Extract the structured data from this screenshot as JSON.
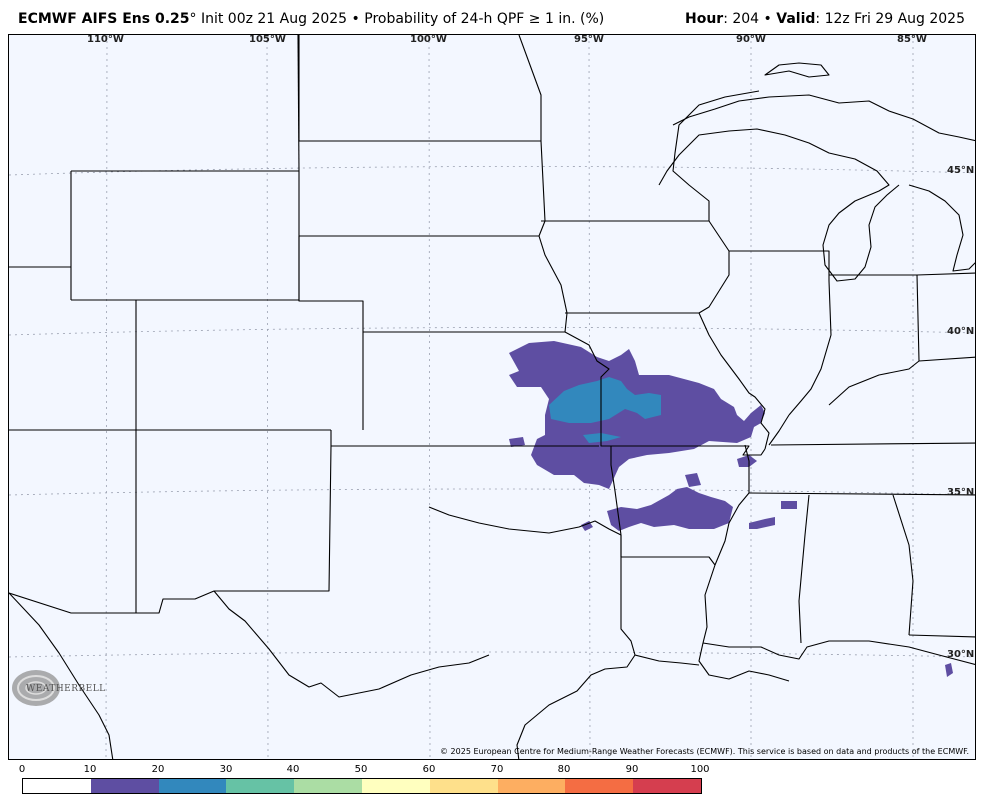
{
  "header": {
    "model": "ECMWF AIFS Ens 0.25",
    "degree": "°",
    "init": " Init 00z 21 Aug 2025",
    "bullet1": " • ",
    "product": "Probability of 24-h QPF ≥ 1 in. (%)",
    "hour_label": "Hour",
    "hour_value": ": 204",
    "bullet2": " • ",
    "valid_label": "Valid",
    "valid_value": ": 12z Fri 29 Aug 2025"
  },
  "map": {
    "longitudes": [
      "110°W",
      "105°W",
      "100°W",
      "95°W",
      "90°W",
      "85°W"
    ],
    "latitudes": [
      "45°N",
      "40°N",
      "35°N",
      "30°N"
    ],
    "copyright": "© 2025 European Centre for Medium-Range Weather Forecasts (ECMWF). This service is based on data and products of the ECMWF.",
    "logo_text": "WEATHERBELL",
    "colors": {
      "background": "#f3f7ff",
      "boundary": "#000000",
      "grid": "#9aa0b0",
      "prob_10_20": "#5e4ea2",
      "prob_20_30": "#3288bd"
    }
  },
  "legend": {
    "ticks": [
      "0",
      "10",
      "20",
      "30",
      "40",
      "50",
      "60",
      "70",
      "80",
      "90",
      "100"
    ],
    "colors": [
      "#ffffff",
      "#5e4ea2",
      "#3288bd",
      "#66c2a5",
      "#abdda4",
      "#ffffbf",
      "#fee08b",
      "#fdae61",
      "#f46d43",
      "#d53e4f",
      "#9e0142"
    ]
  }
}
